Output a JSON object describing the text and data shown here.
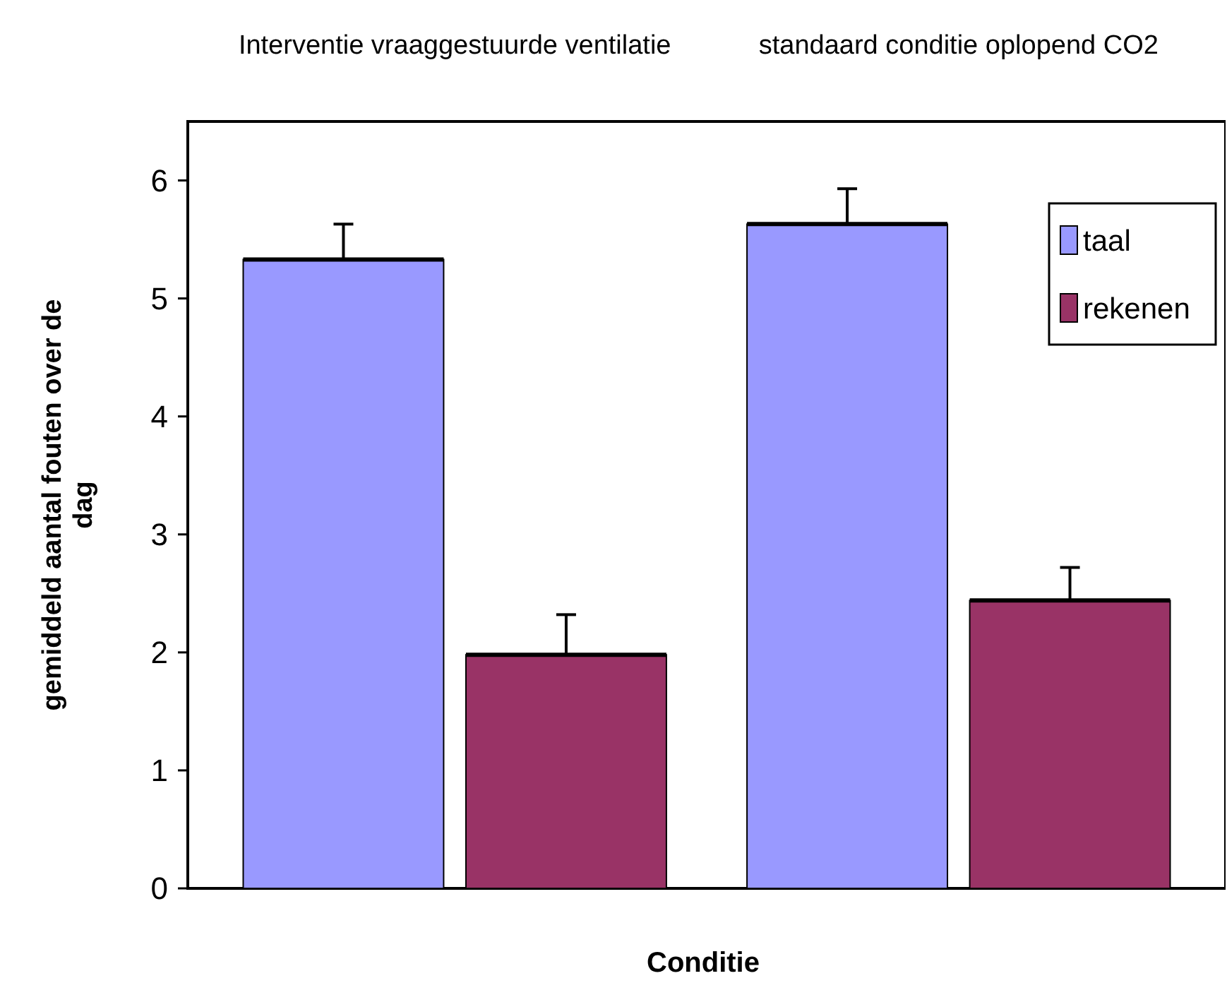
{
  "chart_data": {
    "type": "bar",
    "categories": [
      "Interventie vraaggestuurde ventilatie",
      "standaard conditie oplopend CO2"
    ],
    "xlabel": "Conditie",
    "ylabel": "gemiddeld aantal fouten over de dag",
    "series": [
      {
        "name": "taal",
        "color": "#9999ff",
        "values": [
          5.33,
          5.63
        ],
        "errors": [
          [
            5.33,
            5.63
          ],
          [
            5.63,
            5.93
          ]
        ]
      },
      {
        "name": "rekenen",
        "color": "#993366",
        "values": [
          1.98,
          2.44
        ],
        "errors": [
          [
            1.98,
            2.32
          ],
          [
            2.44,
            2.72
          ]
        ]
      }
    ],
    "ylim": [
      0,
      6.5
    ],
    "yticks": [
      0,
      1,
      2,
      3,
      4,
      5,
      6
    ],
    "legend": "top right",
    "grid": false
  }
}
